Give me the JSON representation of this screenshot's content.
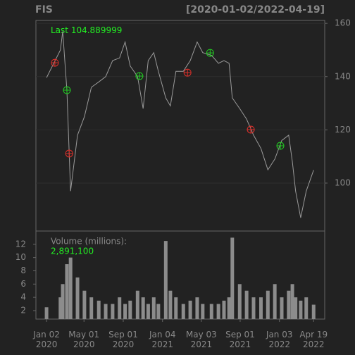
{
  "chart_data": {
    "type": "line",
    "title": "FIS",
    "subtitle": "[2020-01-02/2022-04-19]",
    "last_label": "Last",
    "last_value": 104.889999,
    "x": [
      0,
      30,
      35,
      44,
      52,
      67,
      82,
      97,
      113,
      128,
      143,
      158,
      170,
      181,
      197,
      209,
      220,
      232,
      242,
      258,
      268,
      280,
      296,
      311,
      326,
      338,
      357,
      372,
      384,
      395,
      402,
      418,
      433,
      448,
      464,
      479,
      494,
      509,
      524,
      532,
      539,
      550,
      562,
      578
    ],
    "series": [
      {
        "color": "#9a9a9a",
        "values": [
          139.6,
          150,
          157,
          135,
          97,
          118,
          125,
          136,
          138,
          140,
          146,
          147,
          153,
          144,
          140,
          128,
          146,
          149,
          142,
          132,
          129,
          142,
          142,
          146,
          153,
          149,
          148,
          145,
          146,
          145,
          132,
          128,
          124,
          118,
          113,
          105,
          109,
          116,
          118,
          108,
          97,
          87,
          97,
          104.89
        ]
      }
    ],
    "points": [
      {
        "color": "#e0302a",
        "x": [
          18,
          49,
          305,
          442
        ],
        "values": [
          145.2,
          111.1,
          141.5,
          120.1
        ]
      },
      {
        "color": "#22cc22",
        "x": [
          44,
          201,
          354,
          506
        ],
        "values": [
          134.9,
          140.2,
          148.9,
          114.0
        ]
      }
    ],
    "xlim": [
      -23,
      602
    ],
    "xticks": [
      {
        "value": 0,
        "label": "Jan 02\n2020"
      },
      {
        "value": 81,
        "label": "May 01\n2020"
      },
      {
        "value": 166,
        "label": "Sep 01\n2020"
      },
      {
        "value": 251,
        "label": "Jan 04\n2021"
      },
      {
        "value": 335,
        "label": "May 03\n2021"
      },
      {
        "value": 419,
        "label": "Sep 01\n2021"
      },
      {
        "value": 504,
        "label": "Jan 03\n2022"
      },
      {
        "value": 578,
        "label": "Apr 19\n2022"
      }
    ],
    "ylim": [
      82,
      161.1
    ],
    "yticks": [
      100,
      120,
      140,
      160
    ],
    "volume": {
      "title": "Volume (millions):",
      "color": "#8c8c8c",
      "values": [
        2.5,
        4,
        6,
        9,
        10,
        7,
        5,
        4,
        3.5,
        3,
        3,
        4,
        3,
        3.5,
        5,
        4,
        3,
        4,
        3,
        12.5,
        5,
        4,
        3,
        3.5,
        4,
        3,
        3,
        3,
        3.5,
        4,
        13,
        6,
        5,
        4,
        4,
        5,
        6,
        4,
        5,
        6,
        4,
        3.5,
        4,
        2.8911
      ],
      "last": {
        "value": 2.8911,
        "label": "2,891,100"
      },
      "ylim": [
        0.72,
        14
      ],
      "yticks": [
        2,
        4,
        6,
        8,
        10,
        12
      ]
    },
    "grid": true
  }
}
